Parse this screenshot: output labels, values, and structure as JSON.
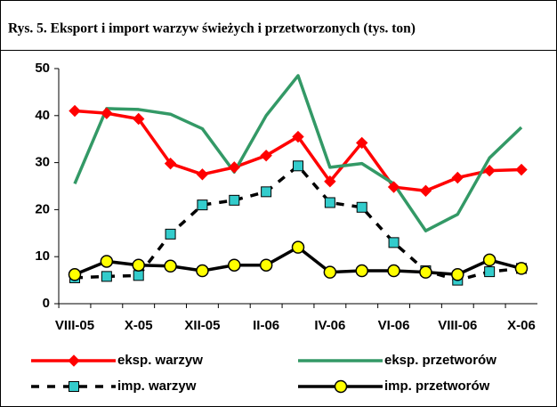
{
  "chart_data": {
    "type": "line",
    "title": "Rys. 5. Eksport i import warzyw świeżych i przetworzonych (tys. ton)",
    "categories": [
      "VIII-05",
      null,
      "X-05",
      null,
      "XII-05",
      null,
      "II-06",
      null,
      "IV-06",
      null,
      "VI-06",
      null,
      "VIII-06",
      null,
      "X-06"
    ],
    "series": [
      {
        "name": "eksp. warzyw",
        "color": "#ff0000",
        "marker": "diamond",
        "marker_color": "#ff0000",
        "line_style": "solid",
        "values": [
          41,
          40.5,
          39.3,
          29.8,
          27.5,
          29,
          31.5,
          35.5,
          26,
          34.2,
          24.8,
          24,
          26.8,
          28.3,
          28.5
        ]
      },
      {
        "name": "eksp. przetworów",
        "color": "#339966",
        "marker": "none",
        "line_style": "solid",
        "values": [
          25.5,
          41.5,
          41.3,
          40.3,
          37.2,
          28,
          40,
          48.5,
          29,
          29.8,
          25.5,
          15.5,
          19,
          31,
          37.5
        ]
      },
      {
        "name": "imp. warzyw",
        "color": "#000000",
        "marker": "square",
        "marker_color": "#33cccc",
        "line_style": "dashed",
        "values": [
          5.5,
          5.8,
          6,
          14.8,
          21,
          22,
          23.8,
          29.3,
          21.5,
          20.5,
          13,
          7,
          5,
          6.8,
          7.5
        ]
      },
      {
        "name": "imp. przetworów",
        "color": "#000000",
        "marker": "circle",
        "marker_color": "#ffff00",
        "line_style": "solid",
        "values": [
          6.2,
          9,
          8.2,
          8,
          7,
          8.2,
          8.2,
          12,
          6.7,
          7,
          7,
          6.7,
          6.2,
          9.3,
          7.5
        ]
      }
    ],
    "ylim": [
      0,
      50
    ],
    "yticks": [
      0,
      10,
      20,
      30,
      40,
      50
    ],
    "grid": false,
    "legend": "bottom"
  }
}
